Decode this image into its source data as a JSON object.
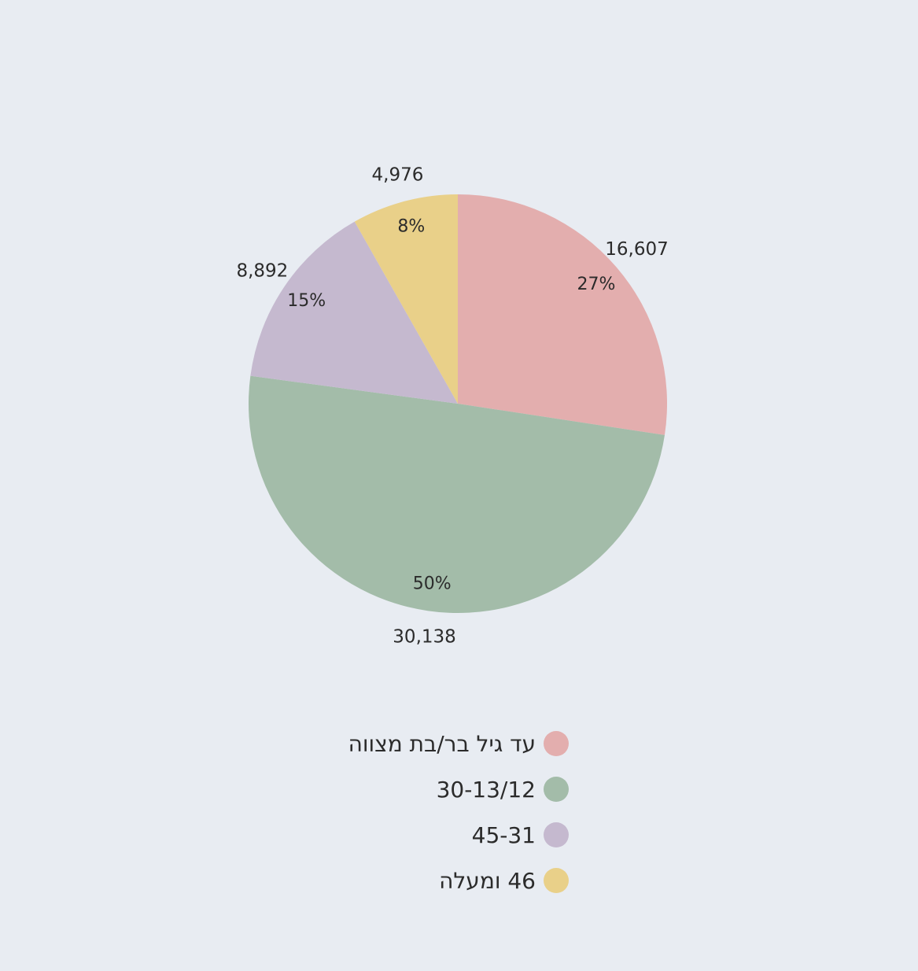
{
  "chart_data": {
    "type": "pie",
    "title": "",
    "start_angle_deg": 0,
    "direction": "clockwise",
    "slices": [
      {
        "label": "עד גיל בר/בת מצווה",
        "value": 16607,
        "value_label": "16,607",
        "percent_label": "27%",
        "color": "#e3aeae"
      },
      {
        "label": "30-13/12",
        "value": 30138,
        "value_label": "30,138",
        "percent_label": "50%",
        "color": "#a3bca9"
      },
      {
        "label": "45-31",
        "value": 8892,
        "value_label": "8,892",
        "percent_label": "15%",
        "color": "#c5b9cf"
      },
      {
        "label": "46 ומעלה",
        "value": 4976,
        "value_label": "4,976",
        "percent_label": "8%",
        "color": "#e9d089"
      }
    ],
    "legend_position": "bottom"
  },
  "legend": {
    "items": [
      {
        "label": "עד גיל בר/בת מצווה",
        "color": "#e3aeae"
      },
      {
        "label": "30-13/12",
        "color": "#a3bca9"
      },
      {
        "label": "45-31",
        "color": "#c5b9cf"
      },
      {
        "label": "46 ומעלה",
        "color": "#e9d089"
      }
    ]
  }
}
